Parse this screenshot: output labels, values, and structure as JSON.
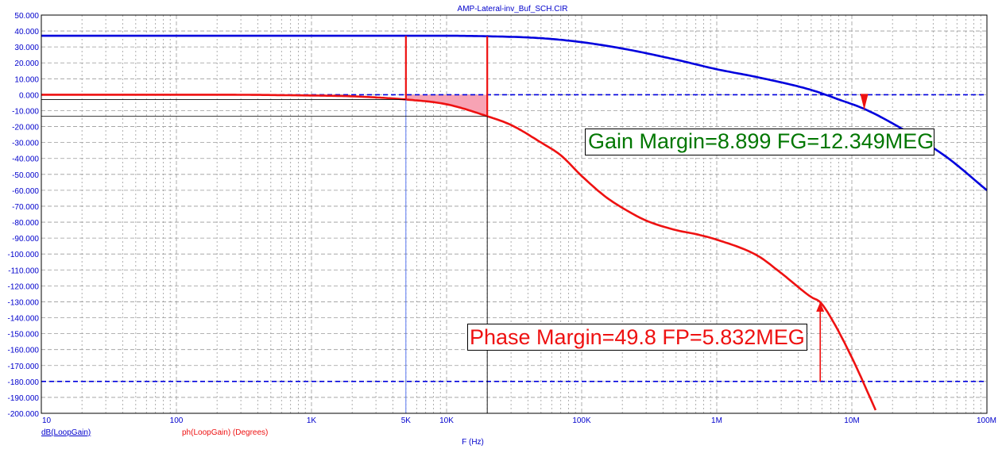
{
  "window": {
    "title": "AMP-Lateral-inv_Buf_SCH.CIR"
  },
  "colors": {
    "gain": "#0000dd",
    "phase": "#ee1111",
    "phase_fill": "#f7a3b4",
    "gain_margin_text": "#007700",
    "phase_margin_text": "#ee1111",
    "axis_text": "#0000cc",
    "grid": "#9a9a9a"
  },
  "annotations": {
    "gain_margin": "Gain Margin=8.899 FG=12.349MEG",
    "phase_margin": "Phase Margin=49.8 FP=5.832MEG"
  },
  "chart_data": {
    "type": "line",
    "title": "AMP-Lateral-inv_Buf_SCH.CIR",
    "xlabel": "F (Hz)",
    "x_scale": "log",
    "xlim": [
      10,
      100000000
    ],
    "ylim": [
      -200,
      50
    ],
    "grid": true,
    "x_tick_labels": [
      "10",
      "100",
      "1K",
      "5K",
      "10K",
      "100K",
      "1M",
      "10M",
      "100M"
    ],
    "x_ticks": [
      10,
      100,
      1000,
      5000,
      10000,
      100000,
      1000000,
      10000000,
      100000000
    ],
    "y_ticks": [
      50,
      40,
      30,
      20,
      10,
      0,
      -10,
      -20,
      -30,
      -40,
      -50,
      -60,
      -70,
      -80,
      -90,
      -100,
      -110,
      -120,
      -130,
      -140,
      -150,
      -160,
      -170,
      -180,
      -190,
      -200
    ],
    "y_tick_labels": [
      "50.000",
      "40.000",
      "30.000",
      "20.000",
      "10.000",
      "0.000",
      "-10.000",
      "-20.000",
      "-30.000",
      "-40.000",
      "-50.000",
      "-60.000",
      "-70.000",
      "-80.000",
      "-90.000",
      "-100.000",
      "-110.000",
      "-120.000",
      "-130.000",
      "-140.000",
      "-150.000",
      "-160.000",
      "-170.000",
      "-180.000",
      "-190.000",
      "-200.000"
    ],
    "series": [
      {
        "name": "dB(LoopGain)",
        "x": [
          10,
          100,
          1000,
          10000,
          20000,
          50000,
          100000,
          200000,
          500000,
          1000000,
          2000000,
          5000000,
          8000000,
          12349000,
          20000000,
          50000000,
          100000000
        ],
        "y": [
          37,
          37,
          37,
          37,
          36.7,
          35.5,
          33,
          29,
          22,
          16,
          11,
          3,
          -3,
          -8.9,
          -18,
          -39,
          -60
        ]
      },
      {
        "name": "ph(LoopGain) (Degrees)",
        "x": [
          10,
          100,
          200,
          1000,
          2000,
          5000,
          10000,
          20000,
          30000,
          50000,
          70000,
          100000,
          150000,
          200000,
          300000,
          500000,
          700000,
          1000000,
          2000000,
          3000000,
          5000000,
          5832000,
          7000000,
          10000000,
          15000000
        ],
        "y": [
          0,
          0,
          0,
          -0.5,
          -1,
          -3,
          -6,
          -13.5,
          -19,
          -30,
          -38,
          -51,
          -64,
          -71,
          -79,
          -85,
          -87.5,
          -91,
          -101,
          -112,
          -127,
          -130.2,
          -140,
          -165,
          -198
        ]
      }
    ],
    "markers": {
      "gain_margin_frequency": 12349000,
      "gain_margin_db": 8.899,
      "phase_margin_frequency": 5832000,
      "phase_margin_deg": 49.8,
      "reference_lines": [
        0,
        -180
      ],
      "cursor_frequencies": [
        5000,
        20000
      ]
    }
  }
}
